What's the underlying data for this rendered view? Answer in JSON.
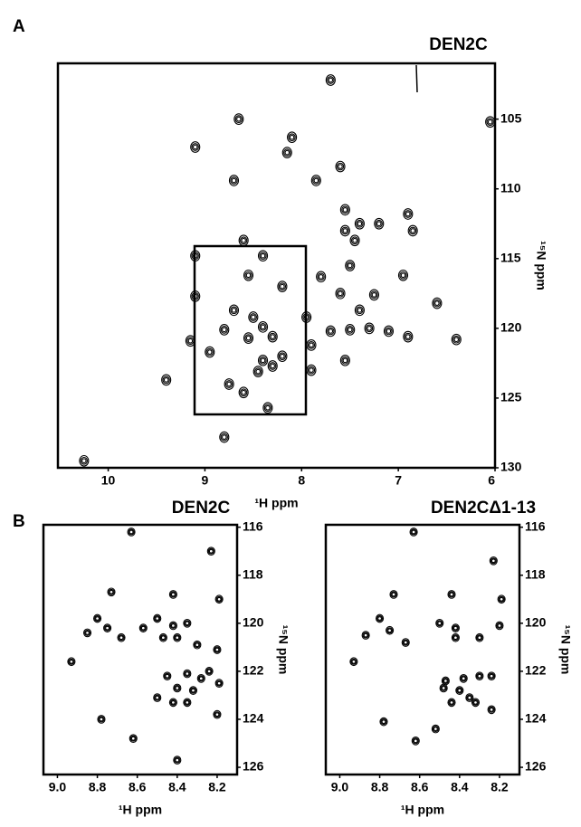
{
  "chart_data": [
    {
      "type": "scatter",
      "panel_label": "A",
      "title": "DEN2C",
      "x_label": "¹H ppm",
      "y_label": "¹⁵N ppm",
      "color": "#000000",
      "xlim": [
        10.52,
        6
      ],
      "ylim": [
        101,
        130
      ],
      "xticks": [
        10,
        9,
        8,
        7,
        6
      ],
      "yticks": [
        105,
        110,
        115,
        120,
        125,
        130
      ],
      "x": [
        7.7,
        8.65,
        6.05,
        9.1,
        8.1,
        8.15,
        7.6,
        8.7,
        7.85,
        7.4,
        7.55,
        7.2,
        6.9,
        6.85,
        7.55,
        7.45,
        8.6,
        9.1,
        8.4,
        7.5,
        7.8,
        8.55,
        6.95,
        9.1,
        7.6,
        7.25,
        8.2,
        6.6,
        7.4,
        8.7,
        7.95,
        8.5,
        8.8,
        8.4,
        7.7,
        7.5,
        7.3,
        7.1,
        6.9,
        6.4,
        8.55,
        8.3,
        7.9,
        9.15,
        8.95,
        8.2,
        8.4,
        8.3,
        8.45,
        7.55,
        7.9,
        8.75,
        8.6,
        8.35,
        9.4,
        8.8,
        10.25
      ],
      "values": [
        102.2,
        105,
        105.2,
        107,
        106.3,
        107.4,
        108.4,
        109.4,
        109.4,
        112.5,
        111.5,
        112.5,
        111.8,
        113,
        113,
        113.7,
        113.7,
        114.8,
        114.8,
        115.5,
        116.3,
        116.2,
        116.2,
        117.7,
        117.5,
        117.6,
        117,
        118.2,
        118.7,
        118.7,
        119.2,
        119.2,
        120.1,
        119.9,
        120.2,
        120.1,
        120,
        120.2,
        120.6,
        120.8,
        120.7,
        120.6,
        121.2,
        120.9,
        121.7,
        122,
        122.3,
        122.7,
        123.1,
        122.3,
        123,
        124,
        124.6,
        125.7,
        123.7,
        127.8,
        129.5
      ]
    },
    {
      "type": "scatter",
      "panel_label": "B",
      "title": "DEN2C",
      "x_label": "¹H ppm",
      "y_label": "¹⁵N ppm",
      "color": "#000000",
      "xlim": [
        9.07,
        8.1
      ],
      "ylim": [
        115.9,
        126.3
      ],
      "xticks": [
        {
          "value": 9,
          "label": "9.0"
        },
        8.8,
        8.6,
        8.4,
        8.2
      ],
      "yticks": [
        116,
        118,
        120,
        122,
        124,
        126
      ],
      "x": [
        8.63,
        8.23,
        8.73,
        8.42,
        8.19,
        8.8,
        8.75,
        8.85,
        8.68,
        8.5,
        8.42,
        8.35,
        8.47,
        8.4,
        8.57,
        8.3,
        8.93,
        8.2,
        8.45,
        8.35,
        8.28,
        8.24,
        8.19,
        8.4,
        8.32,
        8.35,
        8.42,
        8.5,
        8.62,
        8.78,
        8.4,
        8.2
      ],
      "values": [
        116.2,
        117,
        118.7,
        118.8,
        119,
        119.8,
        120.2,
        120.4,
        120.6,
        119.8,
        120.1,
        120,
        120.6,
        120.6,
        120.2,
        120.9,
        121.6,
        121.1,
        122.2,
        122.1,
        122.3,
        122,
        122.5,
        122.7,
        122.8,
        123.3,
        123.3,
        123.1,
        124.8,
        124,
        125.7,
        123.8
      ]
    },
    {
      "type": "scatter",
      "title": "DEN2CΔ1-13",
      "x_label": "¹H ppm",
      "y_label": "¹⁵N ppm",
      "color": "#000000",
      "xlim": [
        9.07,
        8.1
      ],
      "ylim": [
        115.9,
        126.3
      ],
      "xticks": [
        {
          "value": 9,
          "label": "9.0"
        },
        8.8,
        8.6,
        8.4,
        8.2
      ],
      "yticks": [
        116,
        118,
        120,
        122,
        124,
        126
      ],
      "x": [
        8.63,
        8.23,
        8.73,
        8.44,
        8.19,
        8.8,
        8.75,
        8.87,
        8.67,
        8.5,
        8.42,
        8.3,
        8.42,
        8.2,
        8.93,
        8.47,
        8.38,
        8.3,
        8.24,
        8.48,
        8.4,
        8.35,
        8.44,
        8.32,
        8.24,
        8.62,
        8.78,
        8.52
      ],
      "values": [
        116.2,
        117.4,
        118.8,
        118.8,
        119,
        119.8,
        120.3,
        120.5,
        120.8,
        120,
        120.2,
        120.6,
        120.6,
        120.1,
        121.6,
        122.4,
        122.3,
        122.2,
        122.2,
        122.7,
        122.8,
        123.1,
        123.3,
        123.3,
        123.6,
        124.9,
        124.1,
        124.4
      ]
    }
  ]
}
